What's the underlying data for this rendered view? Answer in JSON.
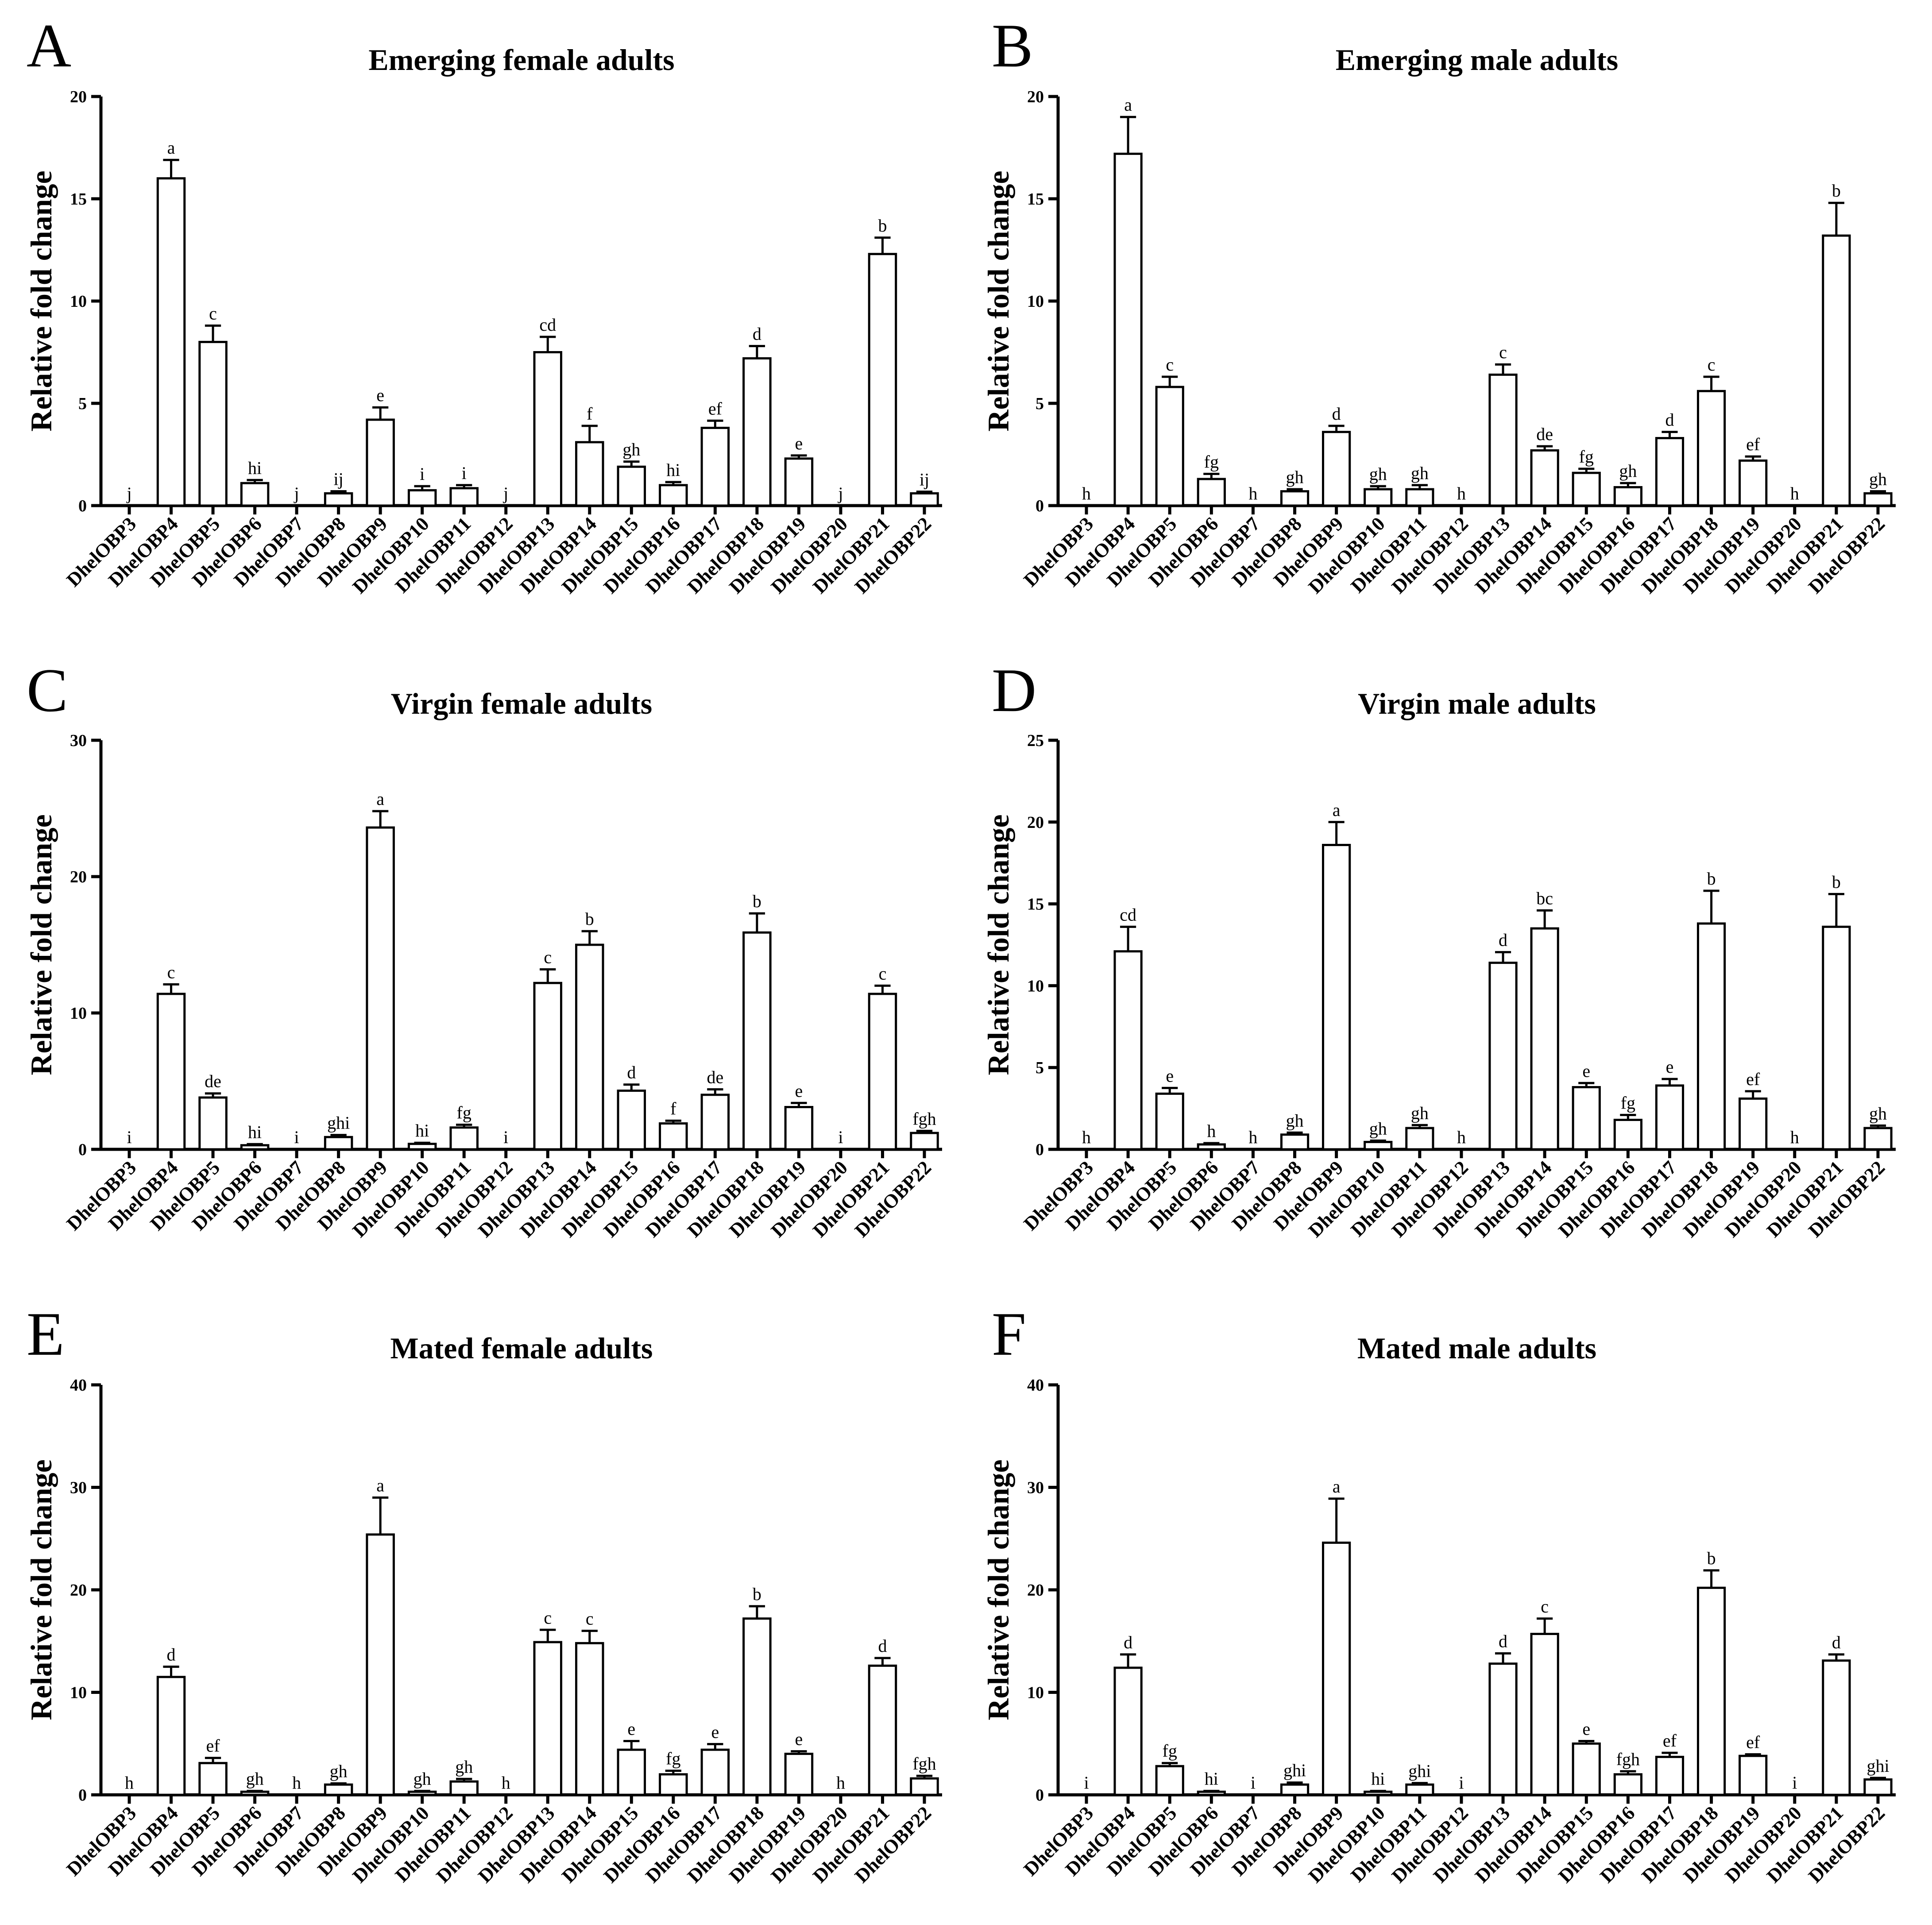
{
  "chart_data": [
    {
      "type": "bar",
      "panel": "A",
      "title": "Emerging female adults",
      "xlabel": "",
      "ylabel": "Relative fold change",
      "ylim": [
        0,
        20
      ],
      "yticks": [
        0,
        5,
        10,
        15,
        20
      ],
      "categories": [
        "DhelOBP3",
        "DhelOBP4",
        "DhelOBP5",
        "DhelOBP6",
        "DhelOBP7",
        "DhelOBP8",
        "DhelOBP9",
        "DhelOBP10",
        "DhelOBP11",
        "DhelOBP12",
        "DhelOBP13",
        "DhelOBP14",
        "DhelOBP15",
        "DhelOBP16",
        "DhelOBP17",
        "DhelOBP18",
        "DhelOBP19",
        "DhelOBP20",
        "DhelOBP21",
        "DhelOBP22"
      ],
      "values": [
        0,
        16.0,
        8.0,
        1.1,
        0,
        0.6,
        4.2,
        0.75,
        0.85,
        0,
        7.5,
        3.1,
        1.9,
        1.0,
        3.8,
        7.2,
        2.3,
        0,
        12.3,
        0.6
      ],
      "errors": [
        0,
        0.9,
        0.8,
        0.15,
        0,
        0.1,
        0.6,
        0.2,
        0.15,
        0,
        0.75,
        0.8,
        0.25,
        0.15,
        0.35,
        0.6,
        0.15,
        0,
        0.8,
        0.08
      ],
      "labels": [
        "j",
        "a",
        "c",
        "hi",
        "j",
        "ij",
        "e",
        "i",
        "i",
        "j",
        "cd",
        "f",
        "gh",
        "hi",
        "ef",
        "d",
        "e",
        "j",
        "b",
        "ij"
      ]
    },
    {
      "type": "bar",
      "panel": "B",
      "title": "Emerging male adults",
      "xlabel": "",
      "ylabel": "Relative fold change",
      "ylim": [
        0,
        20
      ],
      "yticks": [
        0,
        5,
        10,
        15,
        20
      ],
      "categories": [
        "DhelOBP3",
        "DhelOBP4",
        "DhelOBP5",
        "DhelOBP6",
        "DhelOBP7",
        "DhelOBP8",
        "DhelOBP9",
        "DhelOBP10",
        "DhelOBP11",
        "DhelOBP12",
        "DhelOBP13",
        "DhelOBP14",
        "DhelOBP15",
        "DhelOBP16",
        "DhelOBP17",
        "DhelOBP18",
        "DhelOBP19",
        "DhelOBP20",
        "DhelOBP21",
        "DhelOBP22"
      ],
      "values": [
        0,
        17.2,
        5.8,
        1.3,
        0,
        0.7,
        3.6,
        0.8,
        0.8,
        0,
        6.4,
        2.7,
        1.6,
        0.9,
        3.3,
        5.6,
        2.2,
        0,
        13.2,
        0.6
      ],
      "errors": [
        0,
        1.8,
        0.5,
        0.25,
        0,
        0.1,
        0.3,
        0.15,
        0.2,
        0,
        0.5,
        0.2,
        0.2,
        0.2,
        0.3,
        0.7,
        0.2,
        0,
        1.6,
        0.1
      ],
      "labels": [
        "h",
        "a",
        "c",
        "fg",
        "h",
        "gh",
        "d",
        "gh",
        "gh",
        "h",
        "c",
        "de",
        "fg",
        "gh",
        "d",
        "c",
        "ef",
        "h",
        "b",
        "gh"
      ]
    },
    {
      "type": "bar",
      "panel": "C",
      "title": "Virgin female adults",
      "xlabel": "",
      "ylabel": "Relative fold change",
      "ylim": [
        0,
        30
      ],
      "yticks": [
        0,
        10,
        20,
        30
      ],
      "categories": [
        "DhelOBP3",
        "DhelOBP4",
        "DhelOBP5",
        "DhelOBP6",
        "DhelOBP7",
        "DhelOBP8",
        "DhelOBP9",
        "DhelOBP10",
        "DhelOBP11",
        "DhelOBP12",
        "DhelOBP13",
        "DhelOBP14",
        "DhelOBP15",
        "DhelOBP16",
        "DhelOBP17",
        "DhelOBP18",
        "DhelOBP19",
        "DhelOBP20",
        "DhelOBP21",
        "DhelOBP22"
      ],
      "values": [
        0,
        11.4,
        3.8,
        0.3,
        0,
        0.9,
        23.6,
        0.4,
        1.6,
        0,
        12.2,
        15.0,
        4.3,
        1.9,
        4.0,
        15.9,
        3.1,
        0,
        11.4,
        1.2
      ],
      "errors": [
        0,
        0.7,
        0.3,
        0.08,
        0,
        0.15,
        1.2,
        0.08,
        0.2,
        0,
        1.0,
        1.0,
        0.45,
        0.2,
        0.4,
        1.4,
        0.3,
        0,
        0.6,
        0.15
      ],
      "labels": [
        "i",
        "c",
        "de",
        "hi",
        "i",
        "ghi",
        "a",
        "hi",
        "fg",
        "i",
        "c",
        "b",
        "d",
        "f",
        "de",
        "b",
        "e",
        "i",
        "c",
        "fgh"
      ]
    },
    {
      "type": "bar",
      "panel": "D",
      "title": "Virgin male adults",
      "xlabel": "",
      "ylabel": "Relative fold change",
      "ylim": [
        0,
        25
      ],
      "yticks": [
        0,
        5,
        10,
        15,
        20,
        25
      ],
      "categories": [
        "DhelOBP3",
        "DhelOBP4",
        "DhelOBP5",
        "DhelOBP6",
        "DhelOBP7",
        "DhelOBP8",
        "DhelOBP9",
        "DhelOBP10",
        "DhelOBP11",
        "DhelOBP12",
        "DhelOBP13",
        "DhelOBP14",
        "DhelOBP15",
        "DhelOBP16",
        "DhelOBP17",
        "DhelOBP18",
        "DhelOBP19",
        "DhelOBP20",
        "DhelOBP21",
        "DhelOBP22"
      ],
      "values": [
        0,
        12.1,
        3.4,
        0.3,
        0,
        0.9,
        18.6,
        0.45,
        1.3,
        0,
        11.4,
        13.5,
        3.8,
        1.8,
        3.9,
        13.8,
        3.1,
        0,
        13.6,
        1.3
      ],
      "errors": [
        0,
        1.5,
        0.35,
        0.08,
        0,
        0.12,
        1.4,
        0.08,
        0.18,
        0,
        0.65,
        1.1,
        0.25,
        0.3,
        0.4,
        2.0,
        0.45,
        0,
        2.0,
        0.15
      ],
      "labels": [
        "h",
        "cd",
        "e",
        "h",
        "h",
        "gh",
        "a",
        "gh",
        "gh",
        "h",
        "d",
        "bc",
        "e",
        "fg",
        "e",
        "b",
        "ef",
        "h",
        "b",
        "gh"
      ]
    },
    {
      "type": "bar",
      "panel": "E",
      "title": "Mated female adults",
      "xlabel": "",
      "ylabel": "Relative fold change",
      "ylim": [
        0,
        40
      ],
      "yticks": [
        0,
        10,
        20,
        30,
        40
      ],
      "categories": [
        "DhelOBP3",
        "DhelOBP4",
        "DhelOBP5",
        "DhelOBP6",
        "DhelOBP7",
        "DhelOBP8",
        "DhelOBP9",
        "DhelOBP10",
        "DhelOBP11",
        "DhelOBP12",
        "DhelOBP13",
        "DhelOBP14",
        "DhelOBP15",
        "DhelOBP16",
        "DhelOBP17",
        "DhelOBP18",
        "DhelOBP19",
        "DhelOBP20",
        "DhelOBP21",
        "DhelOBP22"
      ],
      "values": [
        0,
        11.5,
        3.1,
        0.3,
        0,
        1.0,
        25.4,
        0.3,
        1.3,
        0,
        14.9,
        14.8,
        4.4,
        2.0,
        4.4,
        17.2,
        4.0,
        0,
        12.6,
        1.6
      ],
      "errors": [
        0,
        1.0,
        0.5,
        0.08,
        0,
        0.12,
        3.6,
        0.08,
        0.25,
        0,
        1.2,
        1.2,
        0.85,
        0.35,
        0.55,
        1.2,
        0.25,
        0,
        0.75,
        0.25
      ],
      "labels": [
        "h",
        "d",
        "ef",
        "gh",
        "h",
        "gh",
        "a",
        "gh",
        "gh",
        "h",
        "c",
        "c",
        "e",
        "fg",
        "e",
        "b",
        "e",
        "h",
        "d",
        "fgh"
      ]
    },
    {
      "type": "bar",
      "panel": "F",
      "title": "Mated male adults",
      "xlabel": "",
      "ylabel": "Relative fold change",
      "ylim": [
        0,
        40
      ],
      "yticks": [
        0,
        10,
        20,
        30,
        40
      ],
      "categories": [
        "DhelOBP3",
        "DhelOBP4",
        "DhelOBP5",
        "DhelOBP6",
        "DhelOBP7",
        "DhelOBP8",
        "DhelOBP9",
        "DhelOBP10",
        "DhelOBP11",
        "DhelOBP12",
        "DhelOBP13",
        "DhelOBP14",
        "DhelOBP15",
        "DhelOBP16",
        "DhelOBP17",
        "DhelOBP18",
        "DhelOBP19",
        "DhelOBP20",
        "DhelOBP21",
        "DhelOBP22"
      ],
      "values": [
        0,
        12.4,
        2.8,
        0.3,
        0,
        1.0,
        24.6,
        0.3,
        1.0,
        0,
        12.8,
        15.7,
        5.0,
        2.0,
        3.7,
        20.2,
        3.8,
        0,
        13.1,
        1.5
      ],
      "errors": [
        0,
        1.3,
        0.3,
        0.08,
        0,
        0.2,
        4.3,
        0.08,
        0.15,
        0,
        1.0,
        1.5,
        0.25,
        0.3,
        0.4,
        1.7,
        0.15,
        0,
        0.6,
        0.15
      ],
      "labels": [
        "i",
        "d",
        "fg",
        "hi",
        "i",
        "ghi",
        "a",
        "hi",
        "ghi",
        "i",
        "d",
        "c",
        "e",
        "fgh",
        "ef",
        "b",
        "ef",
        "i",
        "d",
        "ghi"
      ]
    }
  ]
}
